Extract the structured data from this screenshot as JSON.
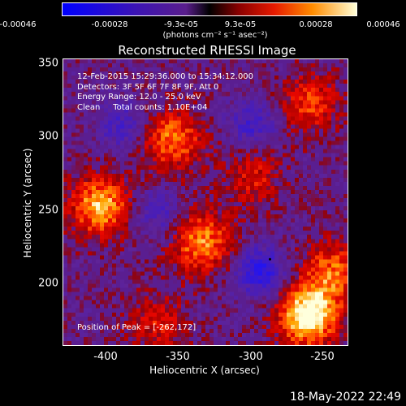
{
  "colorbar": {
    "ticks": [
      "-0.00046",
      "-0.00028",
      "-9.3e-05",
      "9.3e-05",
      "0.00028",
      "0.00046"
    ],
    "units": "(photons cm⁻² s⁻¹ asec⁻²)"
  },
  "title": "Reconstructed RHESSI Image",
  "annotation": {
    "time": "12-Feb-2015 15:29:36.000 to 15:34:12.000",
    "detectors": "Detectors: 3F 5F 6F 7F 8F 9F, Att 0",
    "energy": "Energy Range: 12.0 - 25.0 keV",
    "method": "Clean     Total counts: 1.10E+04"
  },
  "peak_label": "Position of Peak = [-262,172]",
  "axes": {
    "xlabel": "Heliocentric X (arcsec)",
    "ylabel": "Heliocentric Y (arcsec)",
    "xlim": [
      -430,
      -235
    ],
    "ylim": [
      155,
      350
    ],
    "xticks": [
      "-400",
      "-350",
      "-300",
      "-250"
    ],
    "yticks": [
      "350",
      "300",
      "250",
      "200"
    ]
  },
  "datestamp": "18-May-2022 22:49",
  "chart_data": {
    "type": "heatmap",
    "title": "Reconstructed RHESSI Image",
    "xlabel": "Heliocentric X (arcsec)",
    "ylabel": "Heliocentric Y (arcsec)",
    "xlim": [
      -430,
      -235
    ],
    "ylim": [
      155,
      350
    ],
    "colorbar_range": [
      -0.00046,
      0.00046
    ],
    "peak": [
      -262,
      172
    ],
    "bright_regions": [
      {
        "x": -262,
        "y": 175,
        "level": 1.0
      },
      {
        "x": -405,
        "y": 250,
        "level": 0.75
      },
      {
        "x": -355,
        "y": 295,
        "level": 0.6
      },
      {
        "x": -335,
        "y": 225,
        "level": 0.65
      },
      {
        "x": -245,
        "y": 205,
        "level": 0.55
      },
      {
        "x": -260,
        "y": 320,
        "level": 0.45
      },
      {
        "x": -300,
        "y": 270,
        "level": 0.35
      },
      {
        "x": -365,
        "y": 170,
        "level": 0.35
      }
    ],
    "dark_regions": [
      {
        "x": -295,
        "y": 205,
        "level": -0.7
      },
      {
        "x": -300,
        "y": 305,
        "level": -0.45
      },
      {
        "x": -390,
        "y": 305,
        "level": -0.4
      },
      {
        "x": -365,
        "y": 245,
        "level": -0.35
      }
    ]
  }
}
